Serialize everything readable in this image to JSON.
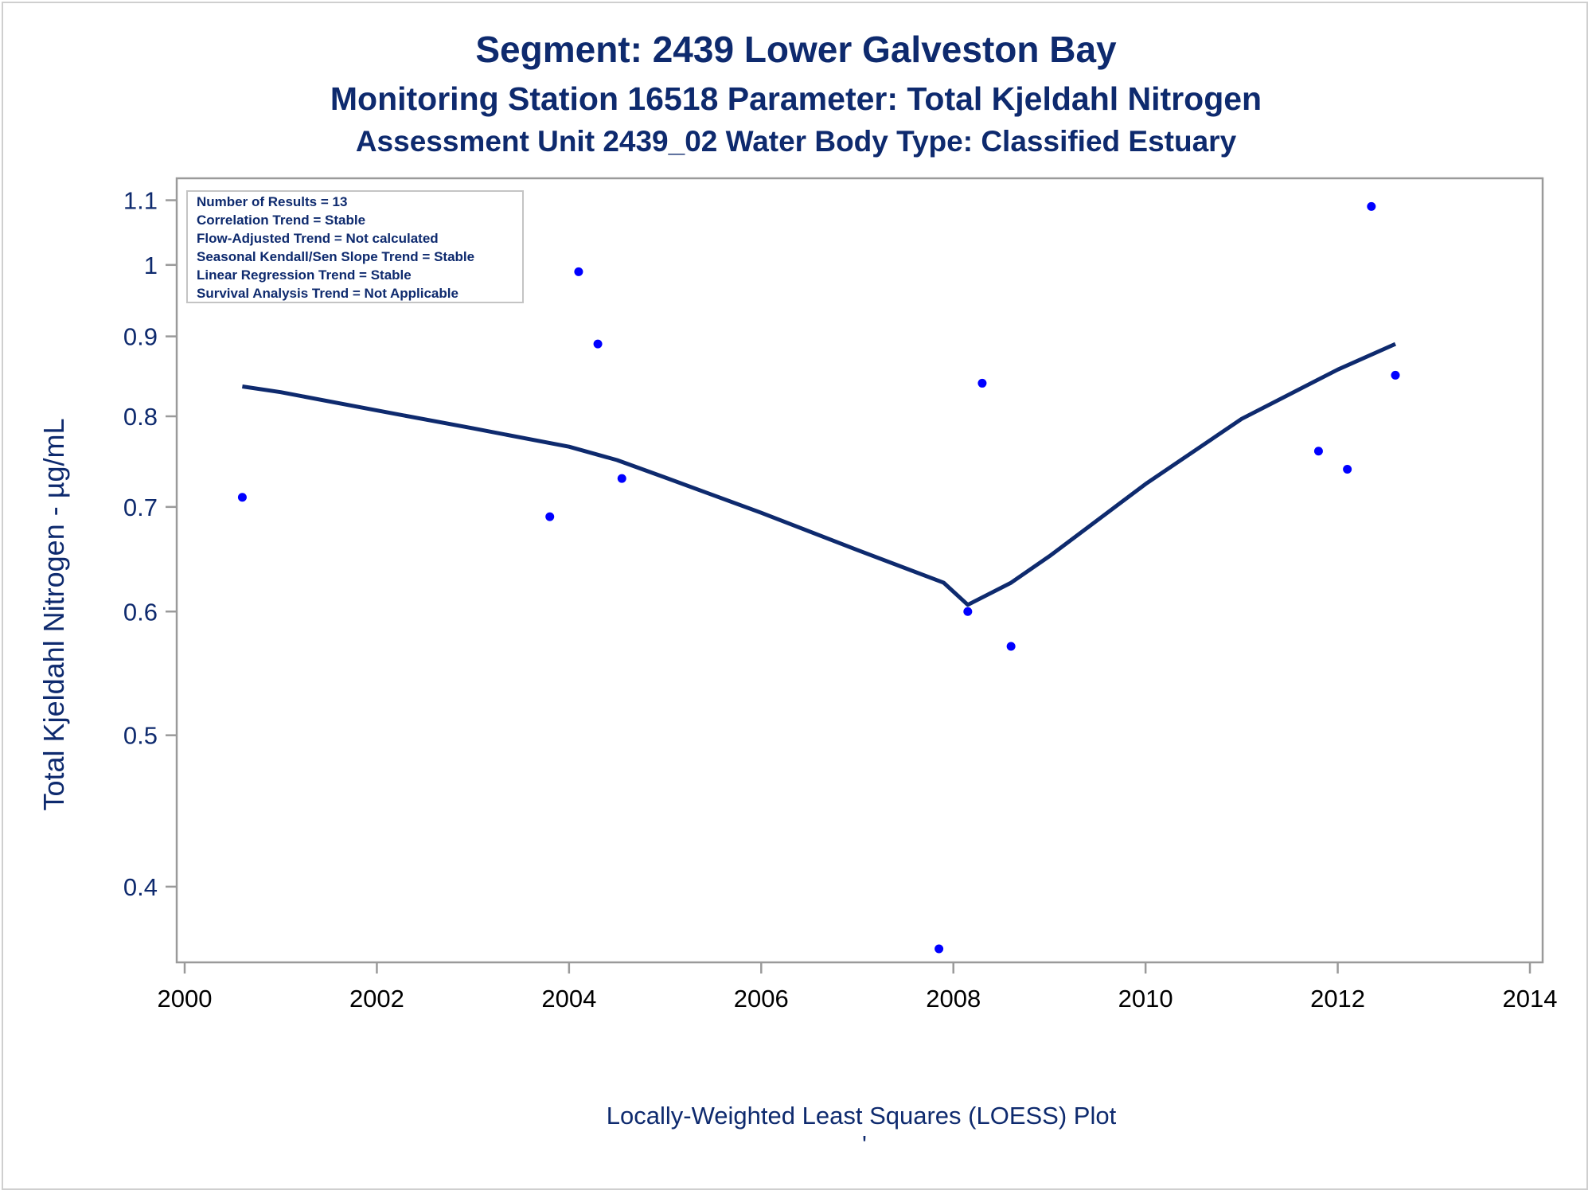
{
  "chart_data": {
    "type": "scatter",
    "title": "Segment: 2439  Lower Galveston Bay",
    "subtitle": "Monitoring Station 16518 Parameter: Total Kjeldahl Nitrogen",
    "subtitle2": "Assessment Unit 2439_02   Water Body Type: Classified Estuary",
    "xlabel": "Locally-Weighted Least Squares (LOESS) Plot",
    "xlabel_note": "'",
    "ylabel": "Total Kjeldahl Nitrogen -  µg/mL",
    "y_scale": "log",
    "xlim": [
      2000,
      2014
    ],
    "ylim": [
      0.362,
      1.115
    ],
    "x_ticks": [
      2000,
      2002,
      2004,
      2006,
      2008,
      2010,
      2012,
      2014
    ],
    "x_tick_labels": [
      "2000",
      "2002",
      "2004",
      "2006",
      "2008",
      "2010",
      "2012",
      "2014"
    ],
    "y_ticks": [
      0.4,
      0.5,
      0.6,
      0.7,
      0.8,
      0.9,
      1,
      1.1
    ],
    "y_tick_labels": [
      "0.4",
      "0.5",
      "0.6",
      "0.7",
      "0.8",
      "0.9",
      "1",
      "1.1"
    ],
    "stats_box": [
      "Number of Results = 13",
      "Correlation Trend = Stable",
      "Flow-Adjusted Trend = Not calculated",
      "Seasonal Kendall/Sen Slope Trend = Stable",
      "Linear Regression Trend = Stable",
      "Survival Analysis Trend = Not Applicable"
    ],
    "series": [
      {
        "kind": "points",
        "color": "#0000ff",
        "x": [
          2000.6,
          2003.8,
          2004.1,
          2004.3,
          2004.55,
          2007.85,
          2008.15,
          2008.3,
          2008.6,
          2011.8,
          2012.1,
          2012.35,
          2012.6
        ],
        "y": [
          0.71,
          0.69,
          0.99,
          0.89,
          0.73,
          0.365,
          0.6,
          0.84,
          0.57,
          0.76,
          0.74,
          1.09,
          0.85
        ]
      },
      {
        "kind": "loess",
        "color": "#0e2a6e",
        "x": [
          2000.6,
          2001,
          2002,
          2003,
          2004,
          2004.5,
          2005,
          2006,
          2007,
          2007.9,
          2008.15,
          2008.6,
          2009,
          2010,
          2011,
          2012,
          2012.6
        ],
        "y": [
          0.836,
          0.829,
          0.807,
          0.786,
          0.765,
          0.75,
          0.731,
          0.694,
          0.657,
          0.626,
          0.606,
          0.626,
          0.651,
          0.724,
          0.797,
          0.857,
          0.89
        ]
      }
    ],
    "grid": false,
    "legend": "none"
  }
}
